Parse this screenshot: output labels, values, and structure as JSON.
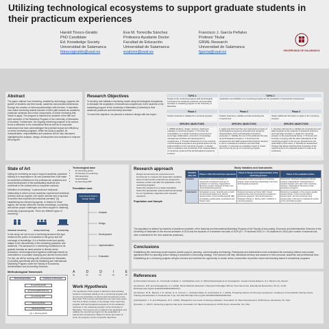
{
  "header": {
    "title": "Utilizing technological ecosystems to support graduate  students in their practicum experiences",
    "authors": [
      {
        "name": "Harold Tinoco-Giraldo",
        "role": "PhD Candidate",
        "dept": "Ed. Knowledge Society",
        "org": "Universidad de Salamanca",
        "email": "htinocogiraldo@usal.es"
      },
      {
        "name": "Eva M. Torrecilla Sánchez",
        "role": "Profesora Ayudante Doctor",
        "dept": "Facultad de Educación",
        "org": "Universidad de Salamanca",
        "email": "evatorre@usal.es"
      },
      {
        "name": "Francisco J. García Peñalvo",
        "role": "Profesor Titular",
        "dept": "GRIAL Research",
        "org": "Universidad de Salamanca",
        "email": "fgarcia@usal.es"
      }
    ],
    "logo_text": "VNiVERSiDAD DE SALAMANCA"
  },
  "abstract": {
    "heading": "Abstract",
    "body": "The paper outlines how mentoring, enabled by technology, supports the growth of students and their social, academic and practical dimensions through the creation of informal partnerships with mentors. It describes how online mentoring assists learners in their path towards an academic practicum semester and enrich components of online mentoring that needs to apply. The program is intended for students of the fifth and sixth semester of the Marketing Program of the University of Manizales (Colombia). Furthermore, the ongoing mentoring program in its various forms is attractive to the educational field as well as to corporate businesses that have acknowledged the potential impact and efficiency of online mentoring programs. While the study is applied, its characteristics, responsibilities and practices will be also discussed, highlighting the analysis, design, development and evaluation to improve the program."
  },
  "objectives": {
    "heading": "Research Objectives",
    "intro": "To develop and validate a mentoring model using technological ecosystems to stimulate the acquisition of transversal competences in the students of the marketing program of the University of Manizales (Colombia) in their academic practicum and internship semester.",
    "aim": "To reach this objective, we planned a research design with two topics:",
    "topic1_title": "TOPIC 1",
    "topic1_text": "Design of the mentoring program with technological ecosystems for academic practicum and internship semester in marketing program to the University of Manizales",
    "topic2_title": "TOPIC 2",
    "topic2_text": "Application and validation of a mentoring program for the acquisition of transversal competences",
    "phases": [
      "Phase 1",
      "Phase 2",
      "Phase 3"
    ],
    "phase_texts": [
      "Student students to validate the mentoring program.",
      "Student students to validate and demonstrating the competences",
      "Obtain additional information to apply to the mentoring program."
    ],
    "spec_label": "SPECIFIC OBJECTIVES",
    "spec1": "1. ADDIE (analyze, design, develop, implement, evaluate) a mentoring program. 2. Promote the consolidation of a virtual mentoring environment to encourage collaboration, promotion of knowledge management activities and development of competences. 3. Provide infrastructure for the contents of technological ecosystems and general actions for the implementation of the mentoring program. 4. Design tools to evaluation and monitoring of the implementation of mentoring model and the technological ecosystems involved.",
    "spec2": "1. Apply and document the user experience process of technological ecosystems presented and recognize characteristics of the technological ecosystems presented. 2. Validate the use of the portal and the app as technological ecosystem. 3. Document the competences and skills acquired that students required in terms of academic practicum and internship semester. 4. Generate an evaluation report to review and correct the set-up of a mentoring program.",
    "spec3": "1. Develop instruments to validate the competences and skills acquired by the students of academic practicum and internship semester. 2. Apply the mentoring program to the experimental Group. 3. Promote and increase a synergy with the other participants of the mentoring program in the set-up, development and optimization of the same. 4. Develop an assessment strategy that allows selecting final completion of the requirements by the selected student in order to be conducted."
  },
  "state_of_art": {
    "heading": "State of Art",
    "p1": "Opting for mentoring as way to support academic practicum training is to emphasize in its own potential that it will make an essential contribution to the professional, academic and social development of the participating students and contribute to the cultural and co-corporate contexts.",
    "p2": "Definition of mentoring: \"a personal and reciprocal relationship in which a more academic experienced individual (mentor) acts as a guide, role model, teacher and or sponsor of another less experienced individual (mentee)\" [3] establishing two intervening agents, in relation to these agents, the mentor offers the mentee knowledge, counseling and advice proper challenges and offers support in obtaining previously proposed goals. There are different types of mentoring:",
    "types": [
      "Individual mentoring",
      "Group mentoring",
      "E-mentoring"
    ],
    "p3": "In this study, we opt to use e-mentoring because this type reinforces the power of motivation in the group and the exchange of knowledge. It is a flexible model and quickly adapts to the discontinuity of the mentoring practicum and academic. The advances in e-mentoring contribution to its gradual increase as used practice in diverse areas (education, technological and logistical challenges faced) by universities in a constant changing and diverse environment. For this, we will be working with Universidad de Manizales (Colombia) specifically with the Marketing and International Marketing Program under the Faculty of Economics, Administration and Accounting Sciences.",
    "method_heading": "Methodological framework"
  },
  "framework": {
    "tech_base_heading": "Technological base",
    "tech_base_items": [
      "E-mentoring portal",
      "Processes of e-learning",
      "Microlearning",
      "Social Media",
      "E-mentoring APP"
    ],
    "foundation_heading": "Foundation base",
    "design_model": "Instructional System Design Model",
    "addie": [
      "Analysis",
      "Design",
      "Development",
      "Implementation",
      "Evaluation"
    ],
    "letters": [
      "A",
      "D",
      "D",
      "I",
      "E"
    ],
    "letter_ids": [
      "(1)",
      "(2)",
      "(3)",
      "(4)",
      "(5)"
    ]
  },
  "method_diagram": {
    "col1": "Methodological Base",
    "col2": "Guidelines of Processes",
    "rows": [
      "E-mentoring Portal",
      "E-mentoring/Microlearning",
      "E-mentoring APP"
    ],
    "bottom1": "Mentoring Model",
    "bottom2": "Mentoring Portal",
    "caption": "Fig. 1. Mentoring Model"
  },
  "work_hypothesis": {
    "heading": "Work Hypothesis",
    "body": "The hypothesis of this project is defined in that including students in business training in an e-mentoring program will improve the acquisition of transversal competences in the labor field. This process will determine we main work topics. The first of these is based on the design of the mentoring program with technological ecosystems for the academic practicum in the marketing program at the University of Manizales. The second one is related to the application and validate the mentoring program for the acquisition of transversal competences. Based on these two topics of work, we propose a series of specific objectives."
  },
  "research_approach": {
    "heading": "Research approach",
    "items": [
      "Design and develop the experiment and instruments to measure the dependent variables (level of transversal competences acquired by students, before and after the application of the mentoring program).",
      "Select the sample from a target population.",
      "Select the appropriate quasi-experimental design for our hypothesis, objectives and research questions."
    ],
    "pop_heading": "Population and Sample"
  },
  "matrix": {
    "heading": "Study Variables and Instruments",
    "cols": [
      "PHASES (tab) (ref)",
      "Phase 1: Pilot Test and User experience",
      "Phase 2: Design and implementation of the mentoring process",
      "Phase 3: Pre-evaluation phase"
    ],
    "rows": [
      {
        "label": "Variables",
        "c1": "Dependents: Level of acquisition of transversal competences and type of profession of mentoring. Independents: Mentoring program designed in Phase zero (Technological Ecosystems)",
        "c2": "Dependents: student perceptions of mentoring program, level of learning methodology to be used, technological ecosystems.",
        "c3": "Dependents: Participant satisfaction with the program. Independents: Characteristics of sessions between (for) each of the mentoring sessions. Independents: Mentoring model acceptance (program)."
      },
      {
        "label": "Instruments",
        "c1": "Self-applied surveys. Need-life tests to build and theoretical background. Clinical questionnaires. Focus and Bounty(self) HEP. Investigating needs/needs, expectations and threats vision.",
        "c2": "Personal interviews and focus (HR). Closed questionnaires Internal transversal competences (previously acquired). Informal Development Strategies (Phase 1). Paving matrix of skills for a mentoring program",
        "c3": "Monitoring & evaluation of the program (quality questionnaires). Cohort success factors questionnaire. Job and mentoring notes questionnaire. Instrument to evaluate the results of the mentorship program."
      }
    ]
  },
  "population": {
    "body": "The population is defined by students of practicum semester of the National and International Marketing Program of the Faculty of Accounting, Economic and Administrative Sciences of the University of Manizales in the second semester of 2018 and the students of II semester and sixth of 2019 (N = 79 students 2018, N = 54 students for 2019) (the number of students has been nominated for the next academic practicum)."
  },
  "conclusions": {
    "heading": "Conclusions",
    "body": "Establishing this mentoring model requires careful support, planning, communicating and training. Participants and stakeholders must understand the mentoring method and provide significant effort for planning before starting to implement a mentoring strategy. This research will help individuals develop and advance in their personal, academic and professional lives. Establishing an e-mentoring program will give mentors and mentees the opportunity to create online communities of practice mixed with teaching based in educational programs."
  },
  "references": {
    "heading": "References",
    "items": [
      "[1] Hernández Sampieri, R., Fernández-Collado, C. and Baptista Lucio, P. (2014) Metodología de la Investigación. Interamericana Editores, S.A. Mexico City, Mexico.",
      "[2] Johnson, R.B. and Onwuegbuzie, A.J. (2004). Mixed Methods Research: A Research Paradigm Whose Time Has Come. Educational Researcher, 33 (7), 14-26. DOI:https://doi.org/10.3102/0013189X033007014.",
      "[3] Johnson, W. B., Barnett, J. E., Elman, N. S., Forrest, L., Schwartz-Mette, R. and Kaslow, N. J. (2012). Preparing trainees for life-long competence: Creating a communitarian training culture. Training and Education in Professional, 6 (4), 211-220 DOI:https://doi.org/10.3102/0013189X033007014",
      "[4] Kirkpatrick, J. D. and Kirkpatrick, W. K. (2016). Kirkpatrick's four levels of training evaluation. Association for Talent Development. ASTD Press, Alexandria, VA, USA.",
      "[5] Ladom, J. (2017). Mentoring programs that work. Association for Talent Development. ASTD Press, Alexandria, VA, USA."
    ]
  },
  "colors": {
    "accent": "#2f4f7a",
    "background": "#d3d3d3",
    "panel": "#ececec",
    "link": "#2a5db0",
    "brand": "#8a1a2a"
  }
}
